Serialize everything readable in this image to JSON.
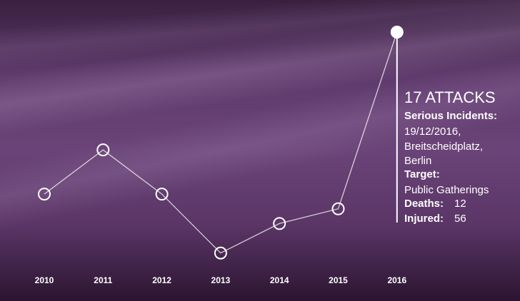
{
  "chart_data": {
    "type": "line",
    "categories": [
      "2010",
      "2011",
      "2012",
      "2013",
      "2014",
      "2015",
      "2016"
    ],
    "values": [
      6,
      9,
      6,
      2,
      4,
      5,
      17
    ],
    "ylim": [
      0,
      17
    ],
    "color": "#ffffff",
    "annotation": {
      "heading": "17 ATTACKS",
      "serious_incidents_label": "Serious Incidents:",
      "incident_lines": [
        "19/12/2016,",
        "Breitscheidplatz,",
        "Berlin"
      ],
      "target_label": "Target:",
      "target": "Public Gatherings",
      "deaths_label": "Deaths:",
      "deaths": 12,
      "injured_label": "Injured:",
      "injured": 56
    }
  }
}
